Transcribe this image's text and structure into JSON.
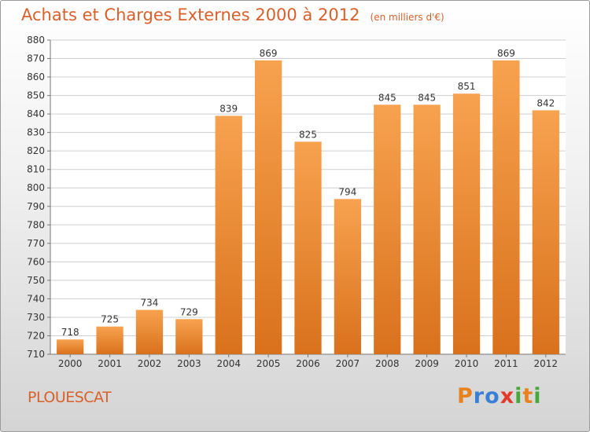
{
  "chart_data": {
    "type": "bar",
    "title": "Achats et Charges Externes 2000 à 2012",
    "subtitle": "(en milliers d'€)",
    "categories": [
      "2000",
      "2001",
      "2002",
      "2003",
      "2004",
      "2005",
      "2006",
      "2007",
      "2008",
      "2009",
      "2010",
      "2011",
      "2012"
    ],
    "values": [
      718,
      725,
      734,
      729,
      839,
      869,
      825,
      794,
      845,
      845,
      851,
      869,
      842
    ],
    "ylim": [
      710,
      880
    ],
    "yticks": [
      710,
      720,
      730,
      740,
      750,
      760,
      770,
      780,
      790,
      800,
      810,
      820,
      830,
      840,
      850,
      860,
      870,
      880
    ],
    "grid": true,
    "bar_color": "#f0953e"
  },
  "location_label": "PLOUESCAT",
  "brand": {
    "letters": [
      "P",
      "r",
      "o",
      "x",
      "i",
      "t",
      "i"
    ],
    "colors": [
      "#e8821e",
      "#3a7fd6",
      "#3a7fd6",
      "#e23b2a",
      "#47a83a",
      "#e8821e",
      "#47a83a"
    ]
  }
}
